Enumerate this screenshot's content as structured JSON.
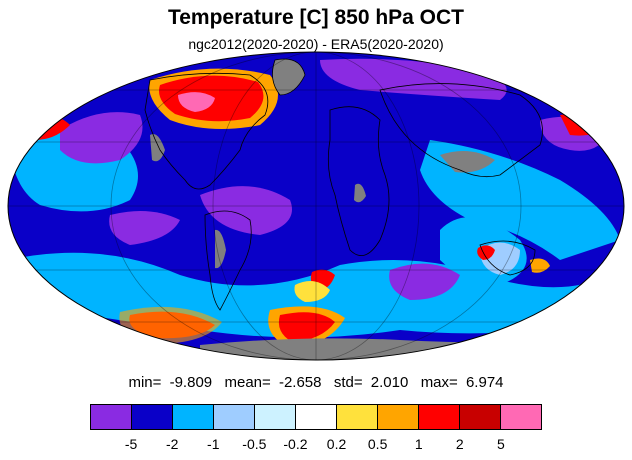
{
  "title": "Temperature [C] 850 hPa OCT",
  "subtitle": "ngc2012(2020-2020) - ERA5(2020-2020)",
  "stats": {
    "min_label": "min=",
    "min": "-9.809",
    "mean_label": "mean=",
    "mean": "-2.658",
    "std_label": "std=",
    "std": "2.010",
    "max_label": "max=",
    "max": "6.974"
  },
  "colorbar": {
    "colors": [
      "#8a2be2",
      "#0a00c8",
      "#00b4ff",
      "#9fcdff",
      "#cdf2ff",
      "#ffffff",
      "#ffe13c",
      "#ffa500",
      "#ff0000",
      "#c80000",
      "#ff69b4"
    ],
    "labels": [
      "-5",
      "-2",
      "-1",
      "-0.5",
      "-0.2",
      "0.2",
      "0.5",
      "1",
      "2",
      "5"
    ]
  },
  "map": {
    "projection": "mollweide",
    "missing_color": "#808080",
    "background_color": "#0a00c8"
  }
}
